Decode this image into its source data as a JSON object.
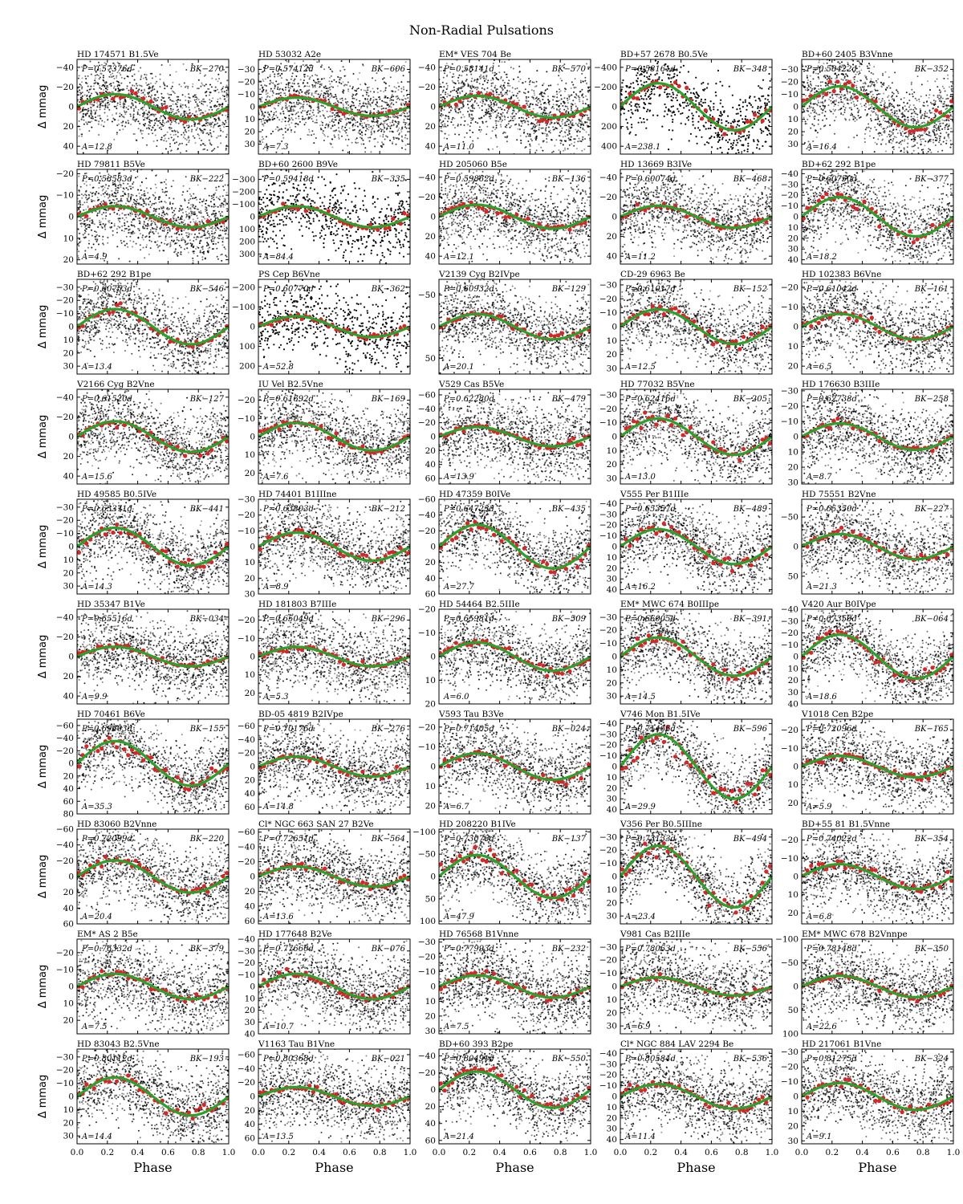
{
  "figure_title": "Non-Radial Pulsations",
  "chart_data": {
    "type": "scatter",
    "title": "Non-Radial Pulsations",
    "xlabel": "Phase",
    "ylabel": "Δ mmag",
    "xlim": [
      0,
      1
    ],
    "x_ticks": [
      "0.0",
      "0.2",
      "0.4",
      "0.6",
      "0.8",
      "1.0"
    ],
    "y_inverted": true,
    "grid": false,
    "series_styles": {
      "raw": "black points",
      "binned": "red points",
      "fit": "green sinusoid"
    },
    "colors": {
      "raw": "#000000",
      "binned": "#d62728",
      "fit": "#2ca02c"
    },
    "panels": [
      {
        "star": "HD 174571  B1.5Ve",
        "period": "P=0.57376d",
        "id": "BK−270",
        "amplitude": "A=12.8",
        "yticks": [
          "−40",
          "−20",
          "0",
          "20",
          "40"
        ],
        "ylim": [
          -48,
          48
        ]
      },
      {
        "star": "HD 53032  A2e",
        "period": "P=0.57412d",
        "id": "BK−606",
        "amplitude": "A=7.3",
        "yticks": [
          "−30",
          "−20",
          "−10",
          "0",
          "10",
          "20",
          "30"
        ],
        "ylim": [
          -38,
          38
        ]
      },
      {
        "star": "EM* VES 704  Be",
        "period": "P=0.58141d",
        "id": "BK−570",
        "amplitude": "A=11.0",
        "yticks": [
          "−40",
          "−20",
          "0",
          "20",
          "40"
        ],
        "ylim": [
          -48,
          48
        ]
      },
      {
        "star": "BD+57 2678  B0.5Ve",
        "period": "P=0.58161d",
        "id": "BK−348",
        "amplitude": "A=238.1",
        "yticks": [
          "−400",
          "−200",
          "0",
          "200",
          "400"
        ],
        "ylim": [
          -480,
          480
        ]
      },
      {
        "star": "BD+60 2405  B3Vnne",
        "period": "P=0.58422d",
        "id": "BK−352",
        "amplitude": "A=16.4",
        "yticks": [
          "−30",
          "−20",
          "−10",
          "0",
          "10",
          "20",
          "30"
        ],
        "ylim": [
          -38,
          38
        ]
      },
      {
        "star": "HD 79811  B5Ve",
        "period": "P=0.58583d",
        "id": "BK−222",
        "amplitude": "A=4.9",
        "yticks": [
          "−20",
          "−10",
          "0",
          "10",
          "20"
        ],
        "ylim": [
          -22,
          22
        ]
      },
      {
        "star": "BD+60 2600  B9Ve",
        "period": "P=0.59418d",
        "id": "BK−335",
        "amplitude": "A=84.4",
        "yticks": [
          "−300",
          "−200",
          "−100",
          "0",
          "100",
          "200",
          "300"
        ],
        "ylim": [
          -380,
          380
        ]
      },
      {
        "star": "HD 205060  B5e",
        "period": "P=0.59862d",
        "id": "BK−136",
        "amplitude": "A=12.1",
        "yticks": [
          "−40",
          "−20",
          "0",
          "20",
          "40"
        ],
        "ylim": [
          -48,
          48
        ]
      },
      {
        "star": "HD 13669  B3IVe",
        "period": "P=0.60074d",
        "id": "BK−468",
        "amplitude": "A=11.2",
        "yticks": [
          "−40",
          "−20",
          "0",
          "20",
          "40"
        ],
        "ylim": [
          -48,
          48
        ]
      },
      {
        "star": "BD+62 292  B1pe",
        "period": "P=0.60750d",
        "id": "BK−377",
        "amplitude": "A=18.2",
        "yticks": [
          "−40",
          "−30",
          "−20",
          "−10",
          "0",
          "10",
          "20",
          "30",
          "40"
        ],
        "ylim": [
          -44,
          44
        ]
      },
      {
        "star": "BD+62 292  B1pe",
        "period": "P=0.60753d",
        "id": "BK−546",
        "amplitude": "A=13.4",
        "yticks": [
          "−30",
          "−20",
          "−10",
          "0",
          "10",
          "20",
          "30"
        ],
        "ylim": [
          -36,
          36
        ]
      },
      {
        "star": "PS Cep  B6Vne",
        "period": "P=0.60770d",
        "id": "BK−362",
        "amplitude": "A=52.8",
        "yticks": [
          "−200",
          "−100",
          "0",
          "100",
          "200"
        ],
        "ylim": [
          -240,
          240
        ]
      },
      {
        "star": "V2139 Cyg  B2IVpe",
        "period": "P=0.60932d",
        "id": "BK−129",
        "amplitude": "A=20.1",
        "yticks": [
          "−50",
          "0",
          "50"
        ],
        "ylim": [
          -75,
          75
        ]
      },
      {
        "star": "CD-29 6963  Be",
        "period": "P=0.61017d",
        "id": "BK−152",
        "amplitude": "A=12.5",
        "yticks": [
          "−30",
          "−20",
          "−10",
          "0",
          "10",
          "20",
          "30"
        ],
        "ylim": [
          -34,
          34
        ]
      },
      {
        "star": "HD 102383  B6Vne",
        "period": "P=0.61042d",
        "id": "BK−161",
        "amplitude": "A=6.5",
        "yticks": [
          "−20",
          "−10",
          "0",
          "10",
          "20"
        ],
        "ylim": [
          -24,
          24
        ]
      },
      {
        "star": "V2166 Cyg  B2Vne",
        "period": "P=0.61520d",
        "id": "BK−127",
        "amplitude": "A=15.6",
        "yticks": [
          "−40",
          "−20",
          "0",
          "20",
          "40"
        ],
        "ylim": [
          -48,
          48
        ]
      },
      {
        "star": "IU Vel  B2.5Vne",
        "period": "P=0.61692d",
        "id": "BK−169",
        "amplitude": "A=7.6",
        "yticks": [
          "−20",
          "−10",
          "0",
          "10",
          "20"
        ],
        "ylim": [
          -26,
          26
        ]
      },
      {
        "star": "V529 Cas  B5Ve",
        "period": "P=0.62280d",
        "id": "BK−479",
        "amplitude": "A=13.9",
        "yticks": [
          "−60",
          "−40",
          "−20",
          "0",
          "20",
          "40",
          "60"
        ],
        "ylim": [
          -68,
          68
        ]
      },
      {
        "star": "HD 77032  B5Vne",
        "period": "P=0.62416d",
        "id": "BK−205",
        "amplitude": "A=13.0",
        "yticks": [
          "−30",
          "−20",
          "−10",
          "0",
          "10",
          "20",
          "30"
        ],
        "ylim": [
          -34,
          34
        ]
      },
      {
        "star": "HD 176630  B3IIIe",
        "period": "P=0.62738d",
        "id": "BK−258",
        "amplitude": "A=8.7",
        "yticks": [
          "−30",
          "−20",
          "−10",
          "0",
          "10",
          "20",
          "30"
        ],
        "ylim": [
          -31,
          31
        ]
      },
      {
        "star": "HD 49585  B0.5IVe",
        "period": "P=0.63371d",
        "id": "BK−441",
        "amplitude": "A=14.3",
        "yticks": [
          "−30",
          "−20",
          "−10",
          "0",
          "10",
          "20",
          "30"
        ],
        "ylim": [
          -36,
          36
        ]
      },
      {
        "star": "HD 74401  B1IIIne",
        "period": "P=0.63803d",
        "id": "BK−212",
        "amplitude": "A=8.9",
        "yticks": [
          "−30",
          "−20",
          "−10",
          "0",
          "10",
          "20",
          "30"
        ],
        "ylim": [
          -30,
          30
        ]
      },
      {
        "star": "HD 47359  B0IVe",
        "period": "P=0.64723d",
        "id": "BK−435",
        "amplitude": "A=27.7",
        "yticks": [
          "−60",
          "−40",
          "−20",
          "0",
          "20",
          "40",
          "60"
        ],
        "ylim": [
          -60,
          60
        ]
      },
      {
        "star": "V555 Per  B1IIIe",
        "period": "P=0.65357d",
        "id": "BK−489",
        "amplitude": "A=16.2",
        "yticks": [
          "−40",
          "−30",
          "−20",
          "−10",
          "0",
          "10",
          "20",
          "30",
          "40"
        ],
        "ylim": [
          -44,
          44
        ]
      },
      {
        "star": "HD 75551  B2Vne",
        "period": "P=0.65350d",
        "id": "BK−227",
        "amplitude": "A=21.3",
        "yticks": [
          "−50",
          "0",
          "50"
        ],
        "ylim": [
          -80,
          80
        ]
      },
      {
        "star": "HD 35347  B1Ve",
        "period": "P=0.65516d",
        "id": "BK−034",
        "amplitude": "A=9.9",
        "yticks": [
          "−40",
          "−20",
          "0",
          "20",
          "40"
        ],
        "ylim": [
          -48,
          48
        ]
      },
      {
        "star": "HD 181803  B7IIIe",
        "period": "P=0.65049d",
        "id": "BK−296",
        "amplitude": "A=5.3",
        "yticks": [
          "−20",
          "−10",
          "0",
          "10",
          "20"
        ],
        "ylim": [
          -26,
          26
        ]
      },
      {
        "star": "HD 54464  B2.5IIIe",
        "period": "P=0.65981d",
        "id": "BK−509",
        "amplitude": "A=6.0",
        "yticks": [
          "−20",
          "−10",
          "0",
          "10",
          "20"
        ],
        "ylim": [
          -20,
          20
        ]
      },
      {
        "star": "EM* MWC 674  B0IIIpe",
        "period": "P=0.66005d",
        "id": "BK−391",
        "amplitude": "A=14.5",
        "yticks": [
          "−30",
          "−20",
          "−10",
          "0",
          "10",
          "20",
          "30"
        ],
        "ylim": [
          -36,
          36
        ]
      },
      {
        "star": "V420 Aur  B0IVpe",
        "period": "P=0.67359d",
        "id": "BK−064",
        "amplitude": "A=18.6",
        "yticks": [
          "−40",
          "−30",
          "−20",
          "−10",
          "0",
          "10",
          "20",
          "30",
          "40"
        ],
        "ylim": [
          -40,
          40
        ]
      },
      {
        "star": "HD 70461  B6Ve",
        "period": "P=0.69603d",
        "id": "BK−155",
        "amplitude": "A=35.3",
        "yticks": [
          "−60",
          "−40",
          "−20",
          "0",
          "20",
          "40",
          "60",
          "80"
        ],
        "ylim": [
          -70,
          80
        ]
      },
      {
        "star": "BD-05 4819  B2IVpe",
        "period": "P=0.70176d",
        "id": "BK−276",
        "amplitude": "A=14.8",
        "yticks": [
          "−60",
          "−40",
          "−20",
          "0",
          "20",
          "40",
          "60"
        ],
        "ylim": [
          -70,
          70
        ]
      },
      {
        "star": "V593 Tau  B3Ve",
        "period": "P=0.71405d",
        "id": "BK−024",
        "amplitude": "A=6.7",
        "yticks": [
          "−20",
          "−10",
          "0",
          "10",
          "20"
        ],
        "ylim": [
          -24,
          24
        ]
      },
      {
        "star": "V746 Mon  B1.5IVe",
        "period": "P=0.71466d",
        "id": "BK−596",
        "amplitude": "A=29.9",
        "yticks": [
          "−40",
          "−30",
          "−20",
          "−10",
          "0",
          "10",
          "20",
          "30",
          "40"
        ],
        "ylim": [
          -44,
          44
        ]
      },
      {
        "star": "V1018 Cen  B2pe",
        "period": "P=0.72096d",
        "id": "BK−165",
        "amplitude": "A=5.9",
        "yticks": [
          "−20",
          "−10",
          "0",
          "10",
          "20"
        ],
        "ylim": [
          -26,
          26
        ]
      },
      {
        "star": "HD 83060  B2Vnne",
        "period": "P=0.72099d",
        "id": "BK−220",
        "amplitude": "A=20.4",
        "yticks": [
          "−60",
          "−40",
          "−20",
          "0",
          "20",
          "40",
          "60"
        ],
        "ylim": [
          -60,
          60
        ]
      },
      {
        "star": "Cl* NGC 663 SAN 27  B2Ve",
        "period": "P=0.72651d",
        "id": "BK−564",
        "amplitude": "A=13.6",
        "yticks": [
          "−60",
          "−40",
          "−20",
          "0",
          "20",
          "40",
          "60"
        ],
        "ylim": [
          -64,
          64
        ]
      },
      {
        "star": "HD 208220  B1IVe",
        "period": "P=0.73076d",
        "id": "BK−137",
        "amplitude": "A=47.9",
        "yticks": [
          "−100",
          "−50",
          "0",
          "50",
          "100"
        ],
        "ylim": [
          -106,
          106
        ]
      },
      {
        "star": "V356 Per  B0.5IIIne",
        "period": "P=0.73133d",
        "id": "BK−494",
        "amplitude": "A=23.4",
        "yticks": [
          "−30",
          "−20",
          "−10",
          "0",
          "10",
          "20",
          "30"
        ],
        "ylim": [
          -36,
          36
        ]
      },
      {
        "star": "BD+55 81  B1.5Vnne",
        "period": "P=0.74022d",
        "id": "BK−354",
        "amplitude": "A=6.8",
        "yticks": [
          "−20",
          "−10",
          "0",
          "10",
          "20"
        ],
        "ylim": [
          -26,
          26
        ]
      },
      {
        "star": "EM* AS 2  B5e",
        "period": "P=0.76332d",
        "id": "BK−379",
        "amplitude": "A=7.5",
        "yticks": [
          "−20",
          "−10",
          "0",
          "10",
          "20"
        ],
        "ylim": [
          -28,
          28
        ]
      },
      {
        "star": "HD 177648  B2Ve",
        "period": "P=0.77660d",
        "id": "BK−076",
        "amplitude": "A=10.7",
        "yticks": [
          "−40",
          "−30",
          "−20",
          "−10",
          "0",
          "10",
          "20",
          "30",
          "40"
        ],
        "ylim": [
          -40,
          40
        ]
      },
      {
        "star": "HD 76568  B1Vnne",
        "period": "P=0.77993d",
        "id": "BK−232",
        "amplitude": "A=7.5",
        "yticks": [
          "−30",
          "−20",
          "−10",
          "0",
          "10",
          "20",
          "30"
        ],
        "ylim": [
          -32,
          32
        ]
      },
      {
        "star": "V981 Cas  B2IIIe",
        "period": "P=0.78063d",
        "id": "BK−556",
        "amplitude": "A=6.9",
        "yticks": [
          "−30",
          "−20",
          "−10",
          "0",
          "10",
          "20",
          "30"
        ],
        "ylim": [
          -36,
          36
        ]
      },
      {
        "star": "EM* MWC 678  B2Vnnpe",
        "period": "P=0.78148d",
        "id": "BK−350",
        "amplitude": "A=22.6",
        "yticks": [
          "−100",
          "−50",
          "0",
          "50",
          "100"
        ],
        "ylim": [
          -100,
          100
        ]
      },
      {
        "star": "HD 83043  B2.5Vne",
        "period": "P=0.80112d",
        "id": "BK−193",
        "amplitude": "A=14.4",
        "yticks": [
          "−30",
          "−20",
          "−10",
          "0",
          "10",
          "20",
          "30"
        ],
        "ylim": [
          -36,
          36
        ]
      },
      {
        "star": "V1163 Tau  B1Vne",
        "period": "P=0.80368d",
        "id": "BK−021",
        "amplitude": "A=13.5",
        "yticks": [
          "−60",
          "−40",
          "−20",
          "0",
          "20",
          "40",
          "60"
        ],
        "ylim": [
          -68,
          68
        ]
      },
      {
        "star": "BD+60 393  B2pe",
        "period": "P=0.80491d",
        "id": "BK−550",
        "amplitude": "A=21.4",
        "yticks": [
          "−40",
          "−20",
          "0",
          "20",
          "40",
          "60"
        ],
        "ylim": [
          -48,
          64
        ]
      },
      {
        "star": "Cl* NGC 884 LAV 2294  Be",
        "period": "P=0.80584d",
        "id": "BK−536",
        "amplitude": "A=11.4",
        "yticks": [
          "−40",
          "−30",
          "−20",
          "−10",
          "0",
          "10",
          "20",
          "30",
          "40"
        ],
        "ylim": [
          -44,
          44
        ]
      },
      {
        "star": "HD 217061  B1Vne",
        "period": "P=0.81275d",
        "id": "BK−324",
        "amplitude": "A=9.1",
        "yticks": [
          "−30",
          "−20",
          "−10",
          "0",
          "10",
          "20",
          "30"
        ],
        "ylim": [
          -32,
          32
        ]
      }
    ]
  }
}
